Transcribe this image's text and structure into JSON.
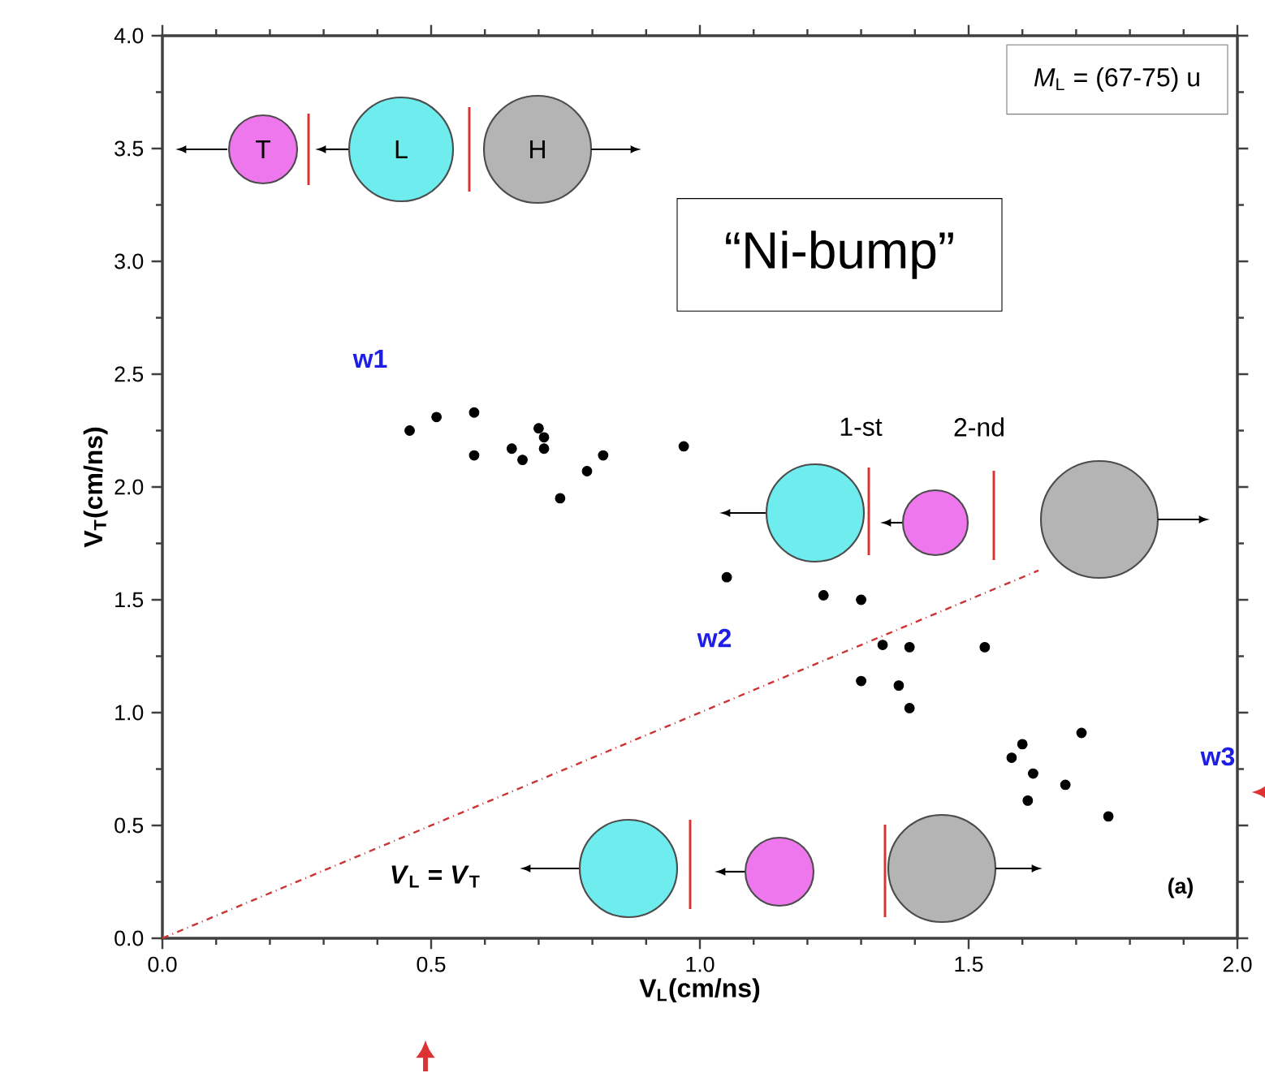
{
  "chart_data": {
    "type": "scatter",
    "xlabel": "V$_{L}$(cm/ns)",
    "ylabel": "V$_{T}$(cm/ns)",
    "xlim": [
      0,
      2
    ],
    "ylim": [
      0,
      4
    ],
    "xticks": [
      {
        "value": 0,
        "label": "0.0"
      },
      {
        "value": 0.5,
        "label": "0.5"
      },
      {
        "value": 1,
        "label": "1.0"
      },
      {
        "value": 1.5,
        "label": "1.5"
      },
      {
        "value": 2,
        "label": "2.0"
      }
    ],
    "yticks": [
      {
        "value": 0,
        "label": "0.0"
      },
      {
        "value": 0.5,
        "label": "0.5"
      },
      {
        "value": 1,
        "label": "1.0"
      },
      {
        "value": 1.5,
        "label": "1.5"
      },
      {
        "value": 2,
        "label": "2.0"
      },
      {
        "value": 2.5,
        "label": "2.5"
      },
      {
        "value": 3,
        "label": "3.0"
      },
      {
        "value": 3.5,
        "label": "3.5"
      },
      {
        "value": 4,
        "label": "4.0"
      }
    ],
    "marker": "circle",
    "series": [
      {
        "color": "#000000",
        "x": [
          0.46,
          0.51,
          0.58,
          0.58,
          0.65,
          0.67,
          0.7,
          0.71,
          0.71,
          0.74,
          0.79,
          0.82,
          0.97,
          1.05,
          1.23,
          1.3,
          1.34,
          1.39,
          1.53,
          1.3,
          1.37,
          1.39,
          1.6,
          1.58,
          1.71,
          1.62,
          1.68,
          1.61,
          1.76
        ],
        "values": [
          2.25,
          2.31,
          2.33,
          2.14,
          2.17,
          2.12,
          2.26,
          2.22,
          2.17,
          1.95,
          2.07,
          2.14,
          2.18,
          1.6,
          1.52,
          1.5,
          1.3,
          1.29,
          1.29,
          1.14,
          1.12,
          1.02,
          0.86,
          0.8,
          0.91,
          0.73,
          0.68,
          0.61,
          0.54
        ]
      },
      {
        "type": "line",
        "color": "#cc3333",
        "line_style": "dashed",
        "marker": "none",
        "x": [
          0,
          1.63
        ],
        "values": [
          0,
          1.63
        ]
      }
    ],
    "annotations": [
      "w1",
      "w2",
      "w3",
      "*V*$_{L}$ = *V*$_{T}$",
      "*M*$_{L}$ = (67-75) u",
      "“Ni-bump”",
      "(a)",
      "T",
      "L",
      "H",
      "1-st",
      "2-nd"
    ]
  }
}
